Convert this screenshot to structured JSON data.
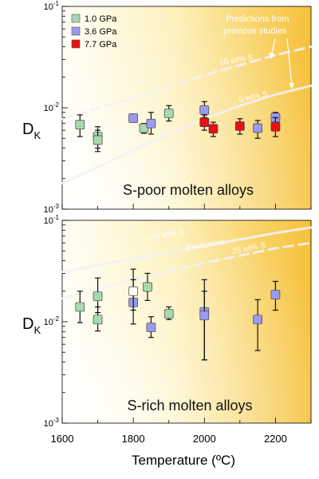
{
  "chart_data": [
    {
      "type": "scatter",
      "yscale": "log",
      "xlim": [
        1600,
        2300
      ],
      "ylim": [
        0.001,
        0.1
      ],
      "ylabel_main": "D",
      "ylabel_sub": "K",
      "ytick_labels": [
        {
          "base": "10",
          "exp": "-1"
        },
        {
          "base": "10",
          "exp": "-2"
        },
        {
          "base": "10",
          "exp": "-3"
        }
      ],
      "caption": "S-poor molten alloys",
      "legend": [
        {
          "label": "1.0 GPa",
          "color": "#a8d8b0"
        },
        {
          "label": "3.6 GPa",
          "color": "#9a9aee"
        },
        {
          "label": "7.7 GPa",
          "color": "#e81010"
        }
      ],
      "annotation": "Predictions from previous studies",
      "annotation_lines": [
        "Predictions from",
        "previous studies"
      ],
      "curves": [
        {
          "label": "10 wt% S",
          "style": "dashed",
          "points": [
            [
              1600,
              0.0078
            ],
            [
              1800,
              0.0125
            ],
            [
              2000,
              0.021
            ],
            [
              2200,
              0.033
            ],
            [
              2300,
              0.04
            ]
          ]
        },
        {
          "label": "0 wt% S",
          "style": "solid",
          "points": [
            [
              1600,
              0.0018
            ],
            [
              1700,
              0.0026
            ],
            [
              1800,
              0.0038
            ],
            [
              1900,
              0.0055
            ],
            [
              2000,
              0.0078
            ],
            [
              2100,
              0.0105
            ],
            [
              2200,
              0.0135
            ],
            [
              2300,
              0.0165
            ]
          ]
        }
      ],
      "series": [
        {
          "name": "1.0 GPa",
          "color": "#a8d8b0",
          "points": [
            {
              "x": 1650,
              "y": 0.0068,
              "lo": 0.0052,
              "hi": 0.0085
            },
            {
              "x": 1700,
              "y": 0.0052,
              "lo": 0.004,
              "hi": 0.0065
            },
            {
              "x": 1700,
              "y": 0.0048,
              "lo": 0.0037,
              "hi": 0.006
            },
            {
              "x": 1830,
              "y": 0.0063,
              "lo": 0.0056,
              "hi": 0.007
            },
            {
              "x": 1900,
              "y": 0.0088,
              "lo": 0.0074,
              "hi": 0.0105
            }
          ]
        },
        {
          "name": "3.6 GPa",
          "color": "#9a9aee",
          "points": [
            {
              "x": 1800,
              "y": 0.0079,
              "lo": 0.0075,
              "hi": 0.0083
            },
            {
              "x": 1850,
              "y": 0.007,
              "lo": 0.0055,
              "hi": 0.009
            },
            {
              "x": 2000,
              "y": 0.0095,
              "lo": 0.008,
              "hi": 0.0115
            },
            {
              "x": 2150,
              "y": 0.0063,
              "lo": 0.005,
              "hi": 0.0075
            },
            {
              "x": 2200,
              "y": 0.008,
              "lo": 0.007,
              "hi": 0.009
            }
          ]
        },
        {
          "name": "7.7 GPa",
          "color": "#e81010",
          "points": [
            {
              "x": 2000,
              "y": 0.0072,
              "lo": 0.006,
              "hi": 0.0085
            },
            {
              "x": 2025,
              "y": 0.0062,
              "lo": 0.0052,
              "hi": 0.0072
            },
            {
              "x": 2100,
              "y": 0.0066,
              "lo": 0.0055,
              "hi": 0.0078
            },
            {
              "x": 2200,
              "y": 0.0065,
              "lo": 0.0052,
              "hi": 0.008
            }
          ]
        }
      ]
    },
    {
      "type": "scatter",
      "yscale": "log",
      "xlim": [
        1600,
        2300
      ],
      "ylim": [
        0.001,
        0.1
      ],
      "ylabel_main": "D",
      "ylabel_sub": "K",
      "xlabel": "Temperature (ºC)",
      "xtick_labels": [
        "1600",
        "1800",
        "2000",
        "2200"
      ],
      "xtick_values": [
        1600,
        1800,
        2000,
        2200
      ],
      "ytick_labels": [
        {
          "base": "10",
          "exp": "-1"
        },
        {
          "base": "10",
          "exp": "-2"
        },
        {
          "base": "10",
          "exp": "-3"
        }
      ],
      "caption": "S-rich molten alloys",
      "curves": [
        {
          "label": ">25 wt% S",
          "style": "solid",
          "points": [
            [
              1600,
              0.031
            ],
            [
              1800,
              0.042
            ],
            [
              2000,
              0.056
            ],
            [
              2200,
              0.075
            ],
            [
              2300,
              0.085
            ]
          ]
        },
        {
          "label": "25 wt% S",
          "style": "dashed",
          "points": [
            [
              1600,
              0.017
            ],
            [
              1800,
              0.026
            ],
            [
              2000,
              0.038
            ],
            [
              2200,
              0.053
            ],
            [
              2300,
              0.06
            ]
          ]
        }
      ],
      "curve_label_middle": "Predictions",
      "series": [
        {
          "name": "1.0 GPa",
          "color": "#a8d8b0",
          "points": [
            {
              "x": 1650,
              "y": 0.014,
              "lo": 0.0098,
              "hi": 0.02
            },
            {
              "x": 1700,
              "y": 0.0178,
              "lo": 0.0123,
              "hi": 0.027
            },
            {
              "x": 1700,
              "y": 0.0105,
              "lo": 0.0081,
              "hi": 0.014
            },
            {
              "x": 1840,
              "y": 0.022,
              "lo": 0.0162,
              "hi": 0.03
            },
            {
              "x": 1900,
              "y": 0.012,
              "lo": 0.0105,
              "hi": 0.014
            }
          ]
        },
        {
          "name": "3.6 GPa",
          "color": "#9a9aee",
          "points": [
            {
              "x": 1800,
              "y": 0.0155,
              "lo": 0.0095,
              "hi": 0.026
            },
            {
              "x": 1850,
              "y": 0.0088,
              "lo": 0.007,
              "hi": 0.0112
            },
            {
              "x": 2000,
              "y": 0.0125,
              "lo": 0.0042,
              "hi": 0.026
            },
            {
              "x": 2000,
              "y": 0.0115,
              "lo": 0.0042,
              "hi": 0.02
            },
            {
              "x": 2150,
              "y": 0.0105,
              "lo": 0.0052,
              "hi": 0.0165
            },
            {
              "x": 2200,
              "y": 0.0185,
              "lo": 0.013,
              "hi": 0.025
            }
          ]
        },
        {
          "name": "white",
          "color": "#ffffff",
          "points": [
            {
              "x": 1800,
              "y": 0.02,
              "lo": 0.013,
              "hi": 0.033
            }
          ]
        }
      ]
    }
  ]
}
